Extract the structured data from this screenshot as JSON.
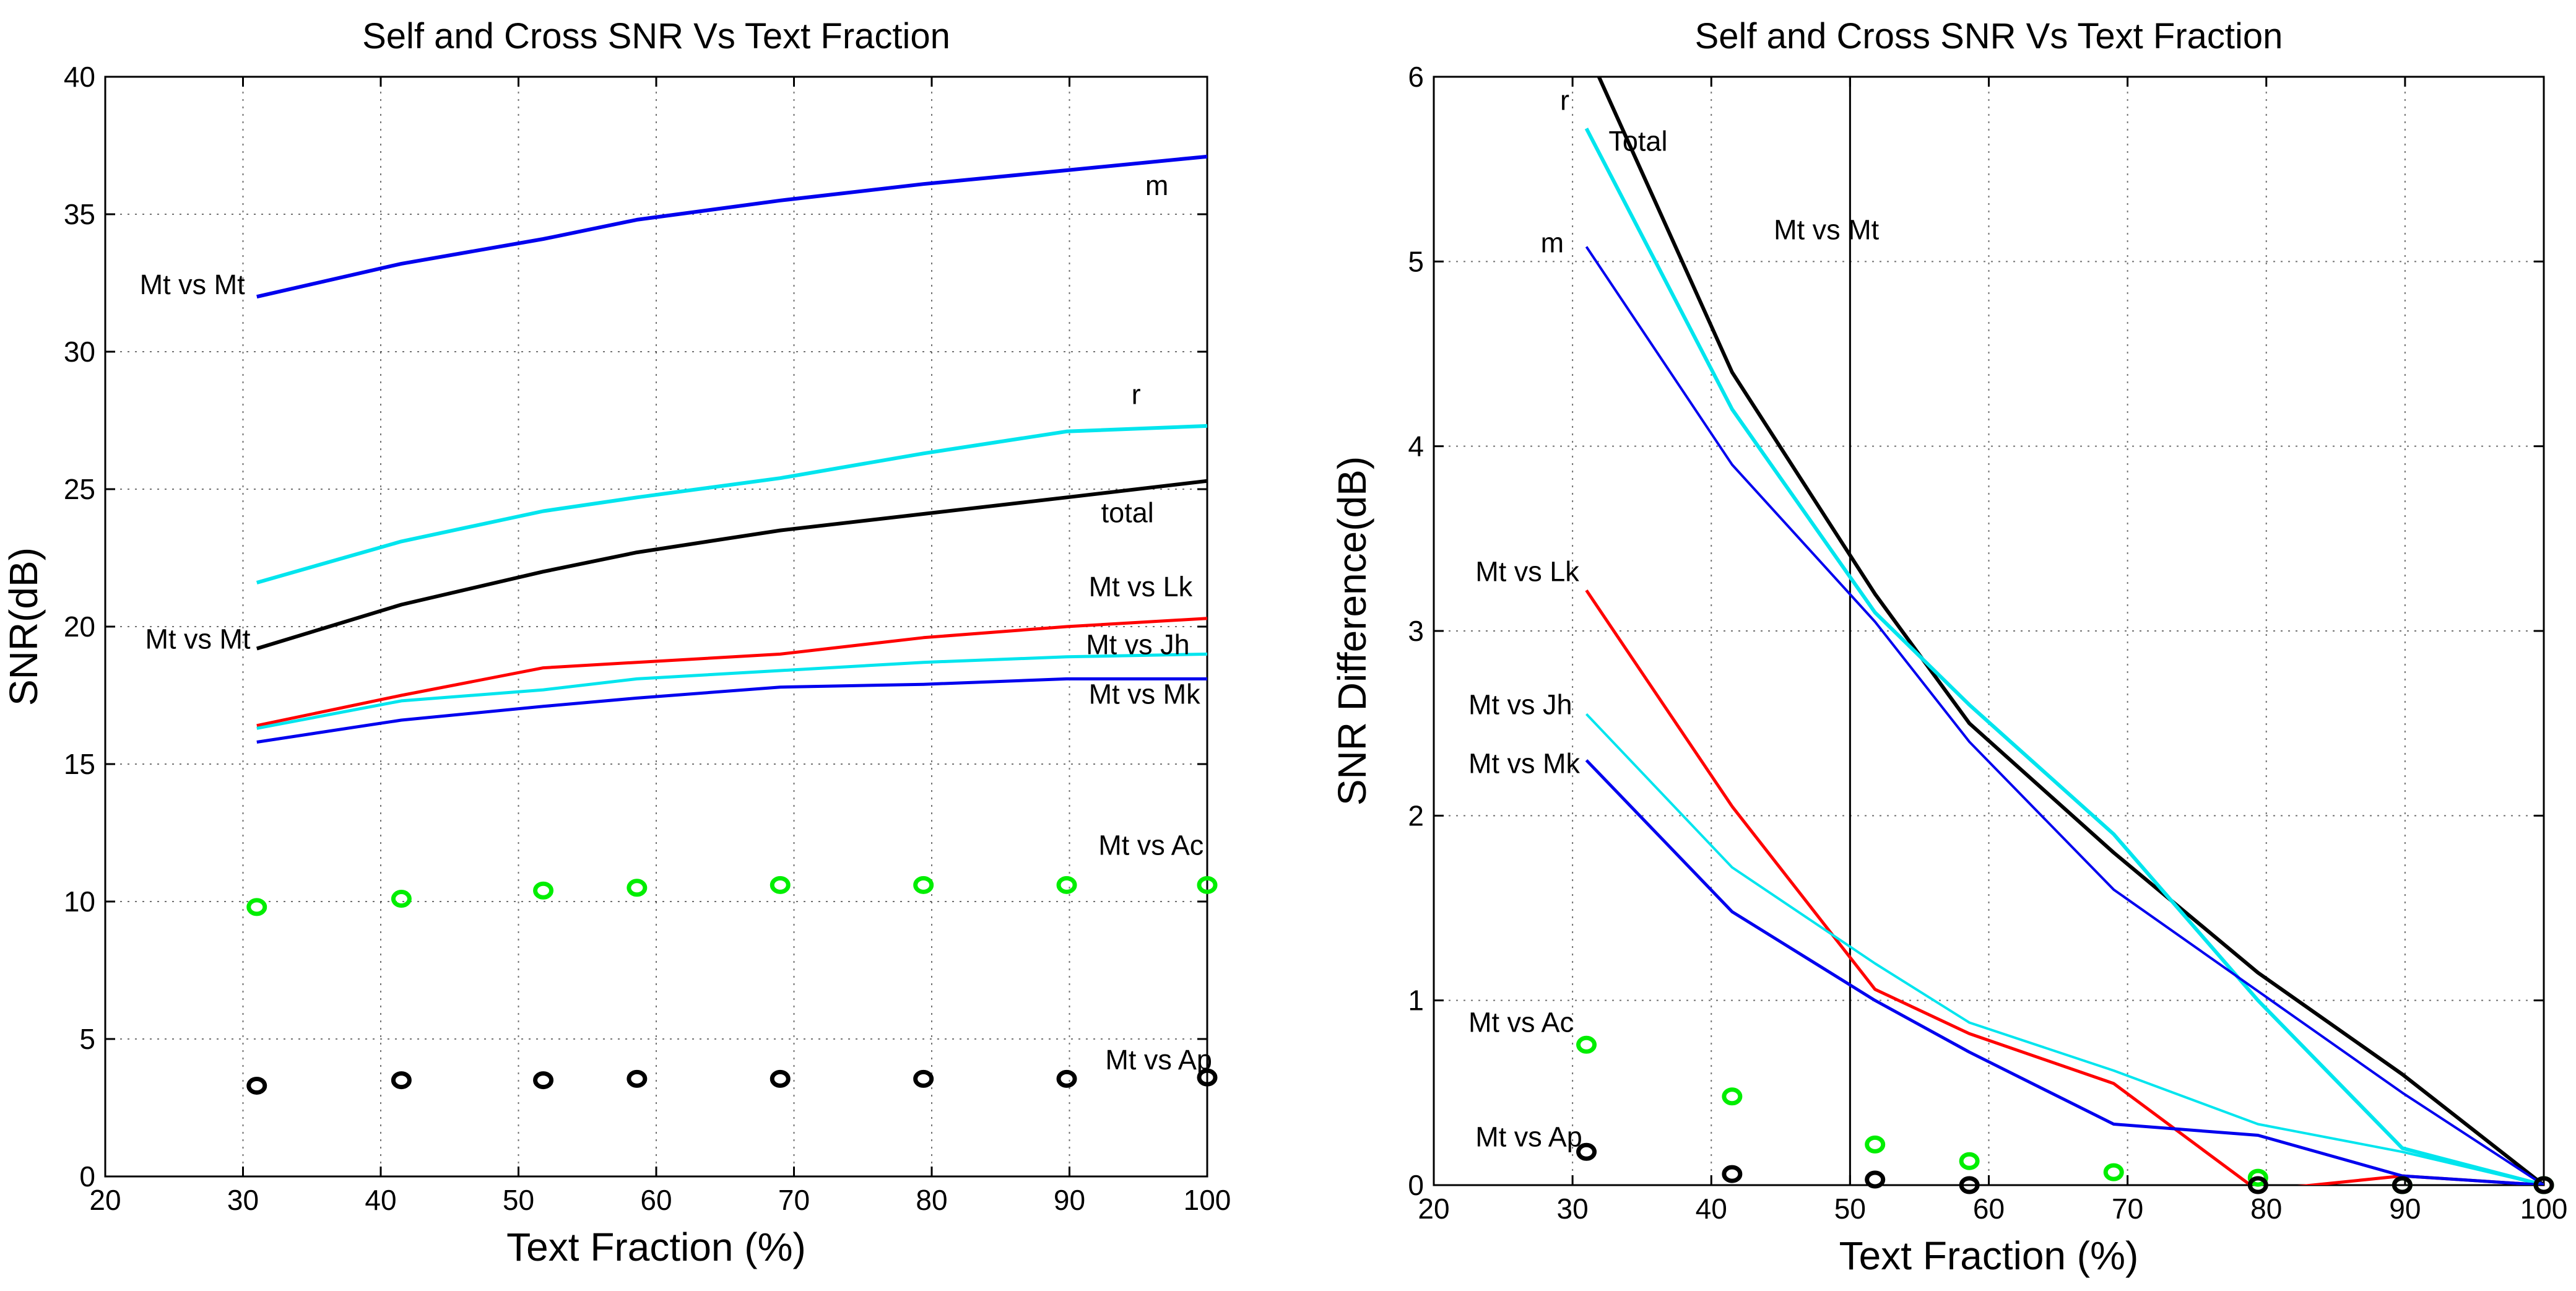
{
  "chart_data": [
    {
      "type": "line",
      "title": "Self and Cross SNR Vs Text Fraction",
      "xlabel": "Text Fraction (%)",
      "ylabel": "SNR(dB)",
      "xlim": [
        20,
        100
      ],
      "ylim": [
        0,
        40
      ],
      "xticks": [
        20,
        30,
        40,
        50,
        60,
        70,
        80,
        90,
        100
      ],
      "yticks": [
        0,
        5,
        10,
        15,
        20,
        25,
        30,
        35,
        40
      ],
      "grid": true,
      "x": [
        31,
        41.5,
        51.8,
        58.6,
        69,
        79.4,
        89.8,
        100
      ],
      "series": [
        {
          "name": "m",
          "style": "line",
          "color": "#0000ee",
          "width": 6,
          "values": [
            32.0,
            33.2,
            34.1,
            34.8,
            35.5,
            36.1,
            36.6,
            37.1
          ]
        },
        {
          "name": "r",
          "style": "line",
          "color": "#00e5ee",
          "width": 6,
          "values": [
            21.6,
            23.1,
            24.2,
            24.7,
            25.4,
            26.3,
            27.1,
            27.3
          ]
        },
        {
          "name": "total",
          "style": "line",
          "color": "#000000",
          "width": 6,
          "values": [
            19.2,
            20.8,
            22.0,
            22.7,
            23.5,
            24.1,
            24.7,
            25.3
          ]
        },
        {
          "name": "Mt vs Lk",
          "style": "line",
          "color": "#ff0000",
          "width": 5,
          "values": [
            16.4,
            17.5,
            18.5,
            18.7,
            19.0,
            19.6,
            20.0,
            20.3
          ]
        },
        {
          "name": "Mt vs Jh",
          "style": "line",
          "color": "#00e5ee",
          "width": 5,
          "values": [
            16.3,
            17.3,
            17.7,
            18.1,
            18.4,
            18.7,
            18.9,
            19.0
          ]
        },
        {
          "name": "Mt vs Mk",
          "style": "line",
          "color": "#0000ee",
          "width": 5,
          "values": [
            15.8,
            16.6,
            17.1,
            17.4,
            17.8,
            17.9,
            18.1,
            18.1
          ]
        },
        {
          "name": "Mt vs Ac",
          "style": "marker",
          "color": "#00ee00",
          "values": [
            9.8,
            10.1,
            10.4,
            10.5,
            10.6,
            10.6,
            10.6,
            10.6
          ]
        },
        {
          "name": "Mt vs Ap",
          "style": "marker",
          "color": "#000000",
          "values": [
            3.3,
            3.5,
            3.5,
            3.55,
            3.55,
            3.55,
            3.55,
            3.6
          ]
        }
      ],
      "annotations": [
        {
          "text": "m",
          "x": 95.5,
          "y": 35.7
        },
        {
          "text": "Mt vs Mt",
          "x": 22.5,
          "y": 32.1
        },
        {
          "text": "r",
          "x": 94.5,
          "y": 28.1
        },
        {
          "text": "total",
          "x": 92.3,
          "y": 23.8
        },
        {
          "text": "Mt vs Lk",
          "x": 91.4,
          "y": 21.1
        },
        {
          "text": "Mt vs Mt",
          "x": 22.9,
          "y": 19.2
        },
        {
          "text": "Mt vs Jh",
          "x": 91.2,
          "y": 19.0
        },
        {
          "text": "Mt vs Mk",
          "x": 91.4,
          "y": 17.2
        },
        {
          "text": "Mt vs Ac",
          "x": 92.1,
          "y": 11.7
        },
        {
          "text": "Mt vs Ap",
          "x": 92.6,
          "y": 3.9
        }
      ]
    },
    {
      "type": "line",
      "title": "Self and Cross SNR Vs Text Fraction",
      "xlabel": "Text Fraction (%)",
      "ylabel": "SNR Difference(dB)",
      "xlim": [
        20,
        100
      ],
      "ylim": [
        0,
        6
      ],
      "xticks": [
        20,
        30,
        40,
        50,
        60,
        70,
        80,
        90,
        100
      ],
      "yticks": [
        0,
        1,
        2,
        3,
        4,
        5,
        6
      ],
      "grid": true,
      "vline": 50,
      "x": [
        31,
        41.5,
        51.8,
        58.6,
        69,
        79.4,
        89.8,
        100
      ],
      "series": [
        {
          "name": "Total",
          "style": "line",
          "color": "#000000",
          "width": 6,
          "values": [
            6.15,
            4.4,
            3.2,
            2.5,
            1.8,
            1.15,
            0.6,
            0.0
          ]
        },
        {
          "name": "r",
          "style": "line",
          "color": "#00e5ee",
          "width": 6,
          "values": [
            5.72,
            4.2,
            3.1,
            2.6,
            1.9,
            1.0,
            0.2,
            0.0
          ]
        },
        {
          "name": "m",
          "style": "line",
          "color": "#0000ee",
          "width": 4,
          "values": [
            5.08,
            3.9,
            3.05,
            2.4,
            1.6,
            1.05,
            0.5,
            0.0
          ]
        },
        {
          "name": "Mt vs Lk",
          "style": "line",
          "color": "#ff0000",
          "width": 5,
          "values": [
            3.22,
            2.05,
            1.06,
            0.82,
            0.55,
            -0.03,
            0.05,
            0.0
          ]
        },
        {
          "name": "Mt vs Jh",
          "style": "line",
          "color": "#00e5ee",
          "width": 4,
          "values": [
            2.55,
            1.72,
            1.2,
            0.88,
            0.62,
            0.33,
            0.18,
            0.0
          ]
        },
        {
          "name": "Mt vs Mk",
          "style": "line",
          "color": "#0000ee",
          "width": 5,
          "values": [
            2.3,
            1.48,
            1.0,
            0.72,
            0.33,
            0.27,
            0.05,
            0.0
          ]
        },
        {
          "name": "Mt vs Ac",
          "style": "marker",
          "color": "#00ee00",
          "values": [
            0.76,
            0.48,
            0.22,
            0.13,
            0.07,
            0.04,
            0.0,
            0.0
          ]
        },
        {
          "name": "Mt vs Ap",
          "style": "marker",
          "color": "#000000",
          "values": [
            0.18,
            0.06,
            0.03,
            0.0,
            null,
            0.0,
            0.0,
            0.0
          ]
        }
      ],
      "annotations": [
        {
          "text": "r",
          "x": 29.1,
          "y": 5.82
        },
        {
          "text": "Total",
          "x": 32.6,
          "y": 5.6
        },
        {
          "text": "Mt vs Mt",
          "x": 44.5,
          "y": 5.12
        },
        {
          "text": "m",
          "x": 27.7,
          "y": 5.05
        },
        {
          "text": "Mt vs Lk",
          "x": 23.0,
          "y": 3.27
        },
        {
          "text": "Mt vs Jh",
          "x": 22.5,
          "y": 2.55
        },
        {
          "text": "Mt vs Mk",
          "x": 22.5,
          "y": 2.23
        },
        {
          "text": "Mt vs Ac",
          "x": 22.5,
          "y": 0.83
        },
        {
          "text": "Mt vs Ap",
          "x": 23.0,
          "y": 0.21
        }
      ]
    }
  ]
}
